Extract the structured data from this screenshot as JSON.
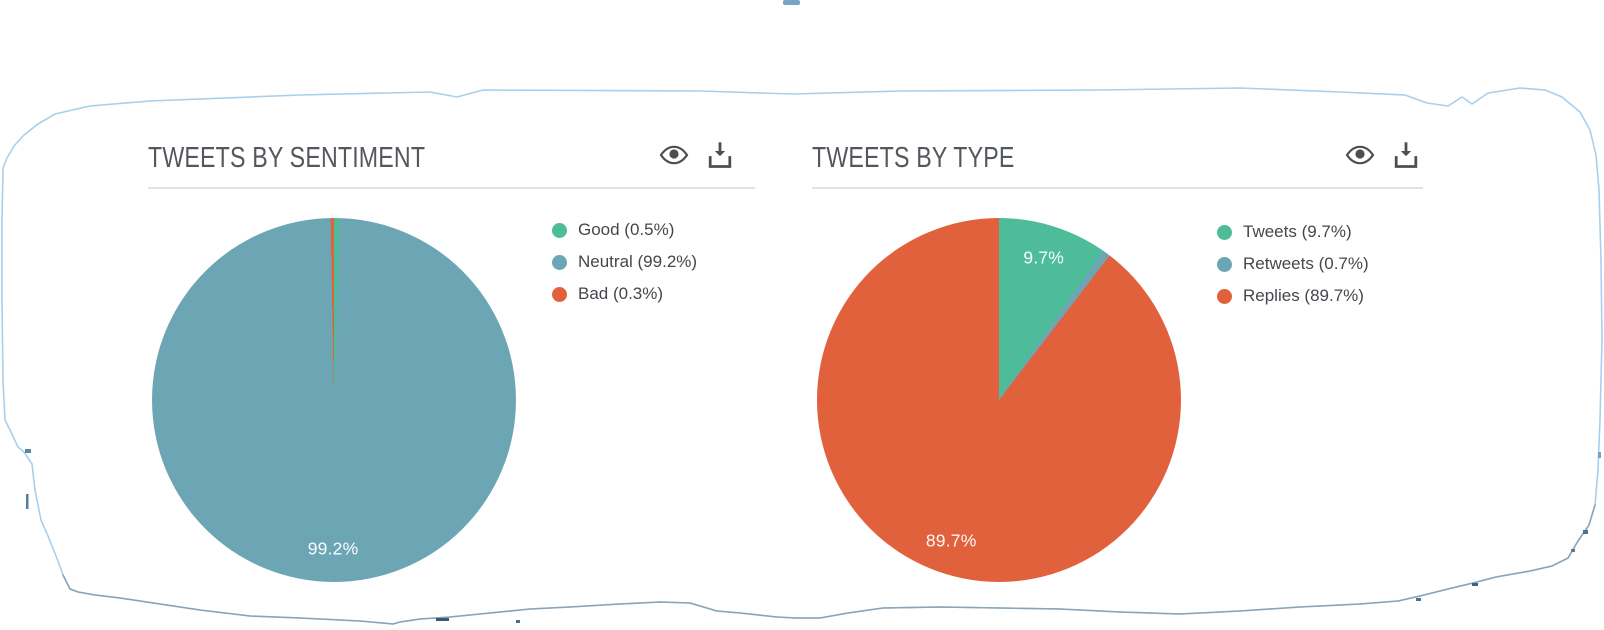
{
  "canvas": {
    "background": "#ffffff",
    "torn_edge_color_top": "#a8cfec",
    "torn_edge_color_bottom": "#8aa3b5"
  },
  "panels": [
    {
      "title": "TWEETS BY SENTIMENT",
      "actions": [
        {
          "icon": "eye-icon"
        },
        {
          "icon": "download-icon"
        }
      ]
    },
    {
      "title": "TWEETS BY TYPE",
      "actions": [
        {
          "icon": "eye-icon"
        },
        {
          "icon": "download-icon"
        }
      ]
    }
  ],
  "chart_data": [
    {
      "type": "pie",
      "title": "TWEETS BY SENTIMENT",
      "slices": [
        {
          "label": "Good",
          "value": 0.5,
          "color": "#4FBC99"
        },
        {
          "label": "Neutral",
          "value": 99.2,
          "color": "#6CA6B4"
        },
        {
          "label": "Bad",
          "value": 0.3,
          "color": "#E2613D"
        }
      ],
      "start_angle_deg": 0,
      "direction": "clockwise",
      "legend_position": "right",
      "legend_labels": [
        "Good (0.5%)",
        "Neutral (99.2%)",
        "Bad (0.3%)"
      ],
      "visible_slice_labels": [
        "99.2%"
      ],
      "slice_label_min_pct": 5,
      "slice_label_radius_fraction": 0.82
    },
    {
      "type": "pie",
      "title": "TWEETS BY TYPE",
      "slices": [
        {
          "label": "Tweets",
          "value": 9.7,
          "color": "#4FBC99"
        },
        {
          "label": "Retweets",
          "value": 0.7,
          "color": "#6CA6B4"
        },
        {
          "label": "Replies",
          "value": 89.7,
          "color": "#E2613D"
        }
      ],
      "start_angle_deg": 0,
      "direction": "clockwise",
      "legend_position": "right",
      "legend_labels": [
        "Tweets (9.7%)",
        "Retweets (0.7%)",
        "Replies (89.7%)"
      ],
      "visible_slice_labels": [
        "9.7%",
        "89.7%"
      ],
      "slice_label_min_pct": 5,
      "slice_label_radius_fraction": 0.82
    }
  ]
}
